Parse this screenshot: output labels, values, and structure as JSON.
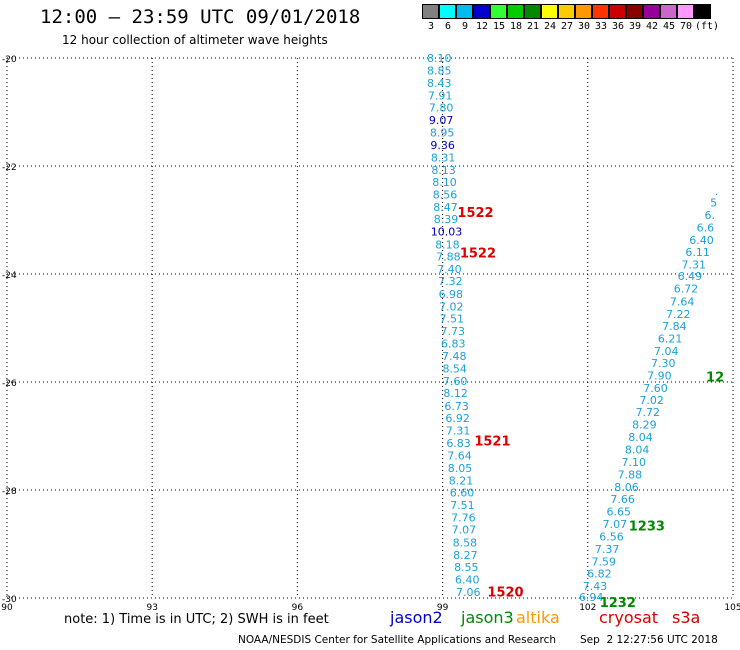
{
  "header": {
    "title": "12:00 – 23:59 UTC 09/01/2018",
    "subtitle": "12 hour collection of altimeter wave heights"
  },
  "color_scale": {
    "unit": "(ft)",
    "bins": [
      {
        "label": "3",
        "color": "#808080"
      },
      {
        "label": "6",
        "color": "#00ffff"
      },
      {
        "label": "9",
        "color": "#00bbee"
      },
      {
        "label": "12",
        "color": "#0000cc"
      },
      {
        "label": "15",
        "color": "#33ff33"
      },
      {
        "label": "18",
        "color": "#00cc00"
      },
      {
        "label": "21",
        "color": "#008800"
      },
      {
        "label": "24",
        "color": "#ffff00"
      },
      {
        "label": "27",
        "color": "#ffcc00"
      },
      {
        "label": "30",
        "color": "#ff9900"
      },
      {
        "label": "33",
        "color": "#ff3300"
      },
      {
        "label": "36",
        "color": "#cc0000"
      },
      {
        "label": "39",
        "color": "#880000"
      },
      {
        "label": "42",
        "color": "#990099"
      },
      {
        "label": "45",
        "color": "#cc66cc"
      },
      {
        "label": "70",
        "color": "#ff99ff"
      },
      {
        "label": "",
        "color": "#000000"
      }
    ]
  },
  "map": {
    "lat_labels": [
      "-20",
      "-22",
      "-24",
      "-26",
      "-28",
      "-30"
    ],
    "lon_labels": [
      "90",
      "93",
      "96",
      "99",
      "102",
      "105"
    ]
  },
  "colors": {
    "cyan_value": "#1ba1d8",
    "blue_value": "#0000c8",
    "jason2": "#0000cc",
    "jason3": "#008800",
    "altika": "#ff9900",
    "cryosat": "#dd0000",
    "s3a": "#cc0000"
  },
  "tracks": [
    {
      "name": "track-1520-1522",
      "points": [
        {
          "v": "8.10",
          "lon": 98.93,
          "lat": -20.0,
          "c": "cyan"
        },
        {
          "v": "8.85",
          "lon": 98.93,
          "lat": -20.23,
          "c": "cyan"
        },
        {
          "v": "8.43",
          "lon": 98.93,
          "lat": -20.46,
          "c": "cyan"
        },
        {
          "v": "7.91",
          "lon": 98.95,
          "lat": -20.69,
          "c": "cyan"
        },
        {
          "v": "7.80",
          "lon": 98.97,
          "lat": -20.92,
          "c": "cyan"
        },
        {
          "v": "9.07",
          "lon": 98.97,
          "lat": -21.15,
          "c": "blue"
        },
        {
          "v": "8.95",
          "lon": 98.99,
          "lat": -21.38,
          "c": "cyan"
        },
        {
          "v": "9.36",
          "lon": 99.0,
          "lat": -21.61,
          "c": "blue"
        },
        {
          "v": "8.31",
          "lon": 99.01,
          "lat": -21.84,
          "c": "cyan"
        },
        {
          "v": "8.13",
          "lon": 99.02,
          "lat": -22.07,
          "c": "cyan"
        },
        {
          "v": "8.10",
          "lon": 99.04,
          "lat": -22.3,
          "c": "cyan"
        },
        {
          "v": "8.56",
          "lon": 99.05,
          "lat": -22.53,
          "c": "cyan"
        },
        {
          "v": "8.47",
          "lon": 99.06,
          "lat": -22.76,
          "c": "cyan"
        },
        {
          "v": "8.39",
          "lon": 99.07,
          "lat": -22.98,
          "c": "cyan"
        },
        {
          "v": "10.03",
          "lon": 99.08,
          "lat": -23.21,
          "c": "blue"
        },
        {
          "v": "8.18",
          "lon": 99.1,
          "lat": -23.45,
          "c": "cyan"
        },
        {
          "v": "7.88",
          "lon": 99.12,
          "lat": -23.68,
          "c": "cyan"
        },
        {
          "v": "7.40",
          "lon": 99.14,
          "lat": -23.91,
          "c": "cyan"
        },
        {
          "v": "7.32",
          "lon": 99.16,
          "lat": -24.13,
          "c": "cyan"
        },
        {
          "v": "6.98",
          "lon": 99.17,
          "lat": -24.37,
          "c": "cyan"
        },
        {
          "v": "7.02",
          "lon": 99.18,
          "lat": -24.6,
          "c": "cyan"
        },
        {
          "v": "7.51",
          "lon": 99.19,
          "lat": -24.82,
          "c": "cyan"
        },
        {
          "v": "7.73",
          "lon": 99.21,
          "lat": -25.06,
          "c": "cyan"
        },
        {
          "v": "6.83",
          "lon": 99.22,
          "lat": -25.29,
          "c": "cyan"
        },
        {
          "v": "7.48",
          "lon": 99.24,
          "lat": -25.52,
          "c": "cyan"
        },
        {
          "v": "8.54",
          "lon": 99.25,
          "lat": -25.75,
          "c": "cyan"
        },
        {
          "v": "7.60",
          "lon": 99.26,
          "lat": -25.98,
          "c": "cyan"
        },
        {
          "v": "8.12",
          "lon": 99.27,
          "lat": -26.2,
          "c": "cyan"
        },
        {
          "v": "6.73",
          "lon": 99.29,
          "lat": -26.44,
          "c": "cyan"
        },
        {
          "v": "6.92",
          "lon": 99.31,
          "lat": -26.67,
          "c": "cyan"
        },
        {
          "v": "7.31",
          "lon": 99.32,
          "lat": -26.9,
          "c": "cyan"
        },
        {
          "v": "6.83",
          "lon": 99.33,
          "lat": -27.13,
          "c": "cyan"
        },
        {
          "v": "7.64",
          "lon": 99.35,
          "lat": -27.36,
          "c": "cyan"
        },
        {
          "v": "8.05",
          "lon": 99.36,
          "lat": -27.59,
          "c": "cyan"
        },
        {
          "v": "8.21",
          "lon": 99.38,
          "lat": -27.82,
          "c": "cyan"
        },
        {
          "v": "6.60",
          "lon": 99.4,
          "lat": -28.05,
          "c": "cyan"
        },
        {
          "v": "7.51",
          "lon": 99.41,
          "lat": -28.28,
          "c": "cyan"
        },
        {
          "v": "7.76",
          "lon": 99.43,
          "lat": -28.51,
          "c": "cyan"
        },
        {
          "v": "7.07",
          "lon": 99.44,
          "lat": -28.73,
          "c": "cyan"
        },
        {
          "v": "8.58",
          "lon": 99.46,
          "lat": -28.97,
          "c": "cyan"
        },
        {
          "v": "8.27",
          "lon": 99.47,
          "lat": -29.2,
          "c": "cyan"
        },
        {
          "v": "8.55",
          "lon": 99.49,
          "lat": -29.43,
          "c": "cyan"
        },
        {
          "v": "6.40",
          "lon": 99.51,
          "lat": -29.66,
          "c": "cyan"
        },
        {
          "v": "7.06",
          "lon": 99.53,
          "lat": -29.89,
          "c": "cyan"
        }
      ]
    },
    {
      "name": "track-1232-1233",
      "points": [
        {
          "v": "6.94",
          "lon": 102.07,
          "lat": -29.98,
          "c": "cyan"
        },
        {
          "v": "7.43",
          "lon": 102.15,
          "lat": -29.78,
          "c": "cyan"
        },
        {
          "v": "6.82",
          "lon": 102.24,
          "lat": -29.55,
          "c": "cyan"
        },
        {
          "v": "7.59",
          "lon": 102.33,
          "lat": -29.32,
          "c": "cyan"
        },
        {
          "v": "7.37",
          "lon": 102.4,
          "lat": -29.09,
          "c": "cyan"
        },
        {
          "v": "6.56",
          "lon": 102.49,
          "lat": -28.86,
          "c": "cyan"
        },
        {
          "v": "7.07",
          "lon": 102.56,
          "lat": -28.63,
          "c": "cyan"
        },
        {
          "v": "6.65",
          "lon": 102.64,
          "lat": -28.4,
          "c": "cyan"
        },
        {
          "v": "7.66",
          "lon": 102.72,
          "lat": -28.17,
          "c": "cyan"
        },
        {
          "v": "8.06",
          "lon": 102.8,
          "lat": -27.94,
          "c": "cyan"
        },
        {
          "v": "7.88",
          "lon": 102.87,
          "lat": -27.71,
          "c": "cyan"
        },
        {
          "v": "7.10",
          "lon": 102.95,
          "lat": -27.48,
          "c": "cyan"
        },
        {
          "v": "8.04",
          "lon": 103.02,
          "lat": -27.25,
          "c": "cyan"
        },
        {
          "v": "8.04",
          "lon": 103.09,
          "lat": -27.02,
          "c": "cyan"
        },
        {
          "v": "8.29",
          "lon": 103.17,
          "lat": -26.79,
          "c": "cyan"
        },
        {
          "v": "7.72",
          "lon": 103.24,
          "lat": -26.56,
          "c": "cyan"
        },
        {
          "v": "7.02",
          "lon": 103.32,
          "lat": -26.33,
          "c": "cyan"
        },
        {
          "v": "7.60",
          "lon": 103.4,
          "lat": -26.11,
          "c": "cyan"
        },
        {
          "v": "7.90",
          "lon": 103.48,
          "lat": -25.88,
          "c": "cyan"
        },
        {
          "v": "7.30",
          "lon": 103.56,
          "lat": -25.65,
          "c": "cyan"
        },
        {
          "v": "7.04",
          "lon": 103.62,
          "lat": -25.43,
          "c": "cyan"
        },
        {
          "v": "6.21",
          "lon": 103.7,
          "lat": -25.19,
          "c": "cyan"
        },
        {
          "v": "7.84",
          "lon": 103.79,
          "lat": -24.96,
          "c": "cyan"
        },
        {
          "v": "7.22",
          "lon": 103.87,
          "lat": -24.74,
          "c": "cyan"
        },
        {
          "v": "7.64",
          "lon": 103.95,
          "lat": -24.51,
          "c": "cyan"
        },
        {
          "v": "6.72",
          "lon": 104.03,
          "lat": -24.27,
          "c": "cyan"
        },
        {
          "v": "6.49",
          "lon": 104.11,
          "lat": -24.04,
          "c": "cyan"
        },
        {
          "v": "7.31",
          "lon": 104.19,
          "lat": -23.82,
          "c": "cyan"
        },
        {
          "v": "6.11",
          "lon": 104.27,
          "lat": -23.59,
          "c": "cyan"
        },
        {
          "v": "6.40",
          "lon": 104.35,
          "lat": -23.37,
          "c": "cyan"
        },
        {
          "v": "6.6",
          "lon": 104.43,
          "lat": -23.14,
          "c": "cyan"
        },
        {
          "v": "6.",
          "lon": 104.52,
          "lat": -22.91,
          "c": "cyan"
        },
        {
          "v": "5",
          "lon": 104.6,
          "lat": -22.68,
          "c": "cyan"
        },
        {
          "v": ".",
          "lon": 104.66,
          "lat": -22.46,
          "c": "cyan"
        }
      ]
    }
  ],
  "time_labels": [
    {
      "text": "1522",
      "lon": 99.68,
      "lat": -22.85,
      "color": "#dd0000"
    },
    {
      "text": "1522",
      "lon": 99.73,
      "lat": -23.6,
      "color": "#dd0000"
    },
    {
      "text": "1521",
      "lon": 100.03,
      "lat": -27.08,
      "color": "#dd0000"
    },
    {
      "text": "1520",
      "lon": 100.3,
      "lat": -29.88,
      "color": "#dd0000"
    },
    {
      "text": "1233",
      "lon": 103.22,
      "lat": -28.66,
      "color": "#008800"
    },
    {
      "text": "1232",
      "lon": 102.62,
      "lat": -30.07,
      "color": "#008800"
    },
    {
      "text": "12",
      "lon": 104.63,
      "lat": -25.9,
      "color": "#008800"
    }
  ],
  "footer": {
    "note": "note: 1) Time is in UTC; 2) SWH is in feet",
    "satellites": [
      {
        "label": "jason2",
        "color": "#0000cc"
      },
      {
        "label": "jason3",
        "color": "#008800"
      },
      {
        "label": "altika",
        "color": "#ff9900"
      },
      {
        "label": "cryosat",
        "color": "#dd0000"
      },
      {
        "label": "s3a",
        "color": "#cc0000"
      }
    ],
    "credit": "NOAA/NESDIS Center for Satellite Applications and Research",
    "timestamp": "Sep  2 12:27:56 UTC 2018"
  }
}
